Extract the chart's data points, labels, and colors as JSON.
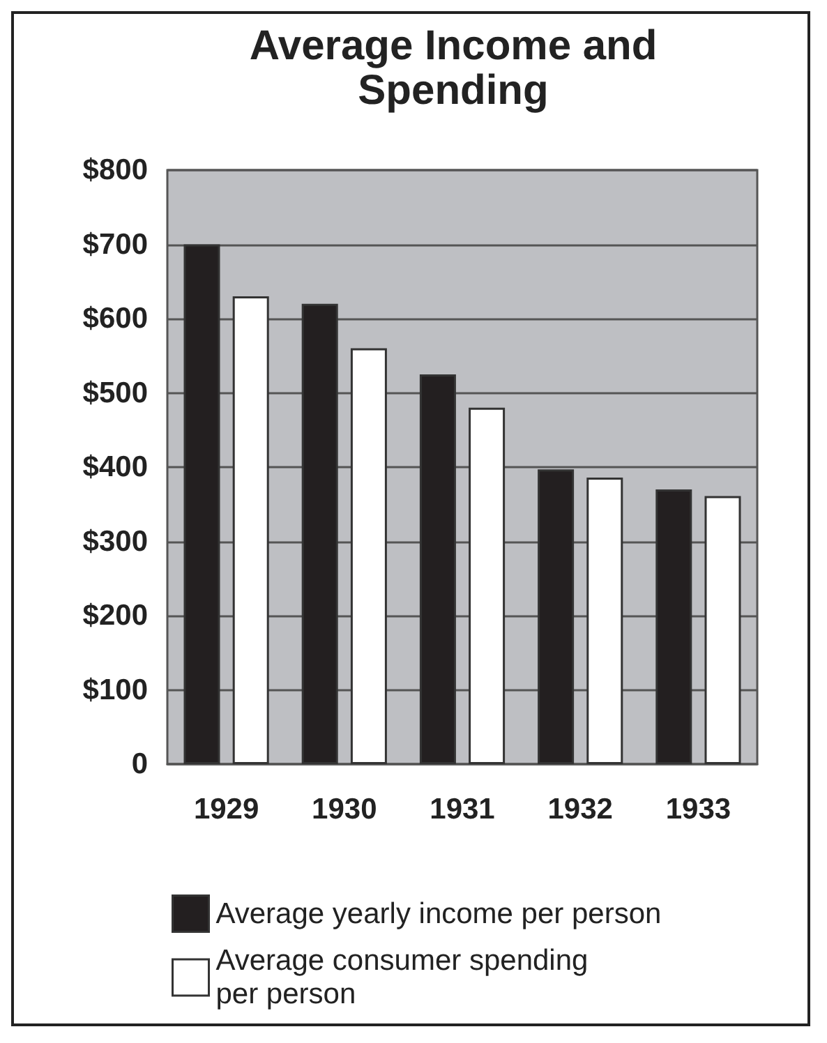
{
  "chart_data": {
    "type": "bar",
    "title": "Average Income and\nSpending",
    "categories": [
      "1929",
      "1930",
      "1931",
      "1932",
      "1933"
    ],
    "series": [
      {
        "name": "Average yearly income per person",
        "color": "#231f20",
        "values": [
          700,
          620,
          525,
          397,
          370
        ]
      },
      {
        "name": "Average consumer spending\nper person",
        "color": "#ffffff",
        "values": [
          630,
          560,
          480,
          386,
          361
        ]
      }
    ],
    "ylim": [
      0,
      800
    ],
    "yticks": [
      0,
      {
        "value": 100,
        "label": "$100"
      },
      {
        "value": 200,
        "label": "$200"
      },
      {
        "value": 300,
        "label": "$300"
      },
      {
        "value": 400,
        "label": "$400"
      },
      {
        "value": 500,
        "label": "$500"
      },
      {
        "value": 600,
        "label": "$600"
      },
      {
        "value": 700,
        "label": "$700"
      },
      {
        "value": 800,
        "label": "$800"
      }
    ],
    "grid": "y",
    "legend": "bottom"
  }
}
